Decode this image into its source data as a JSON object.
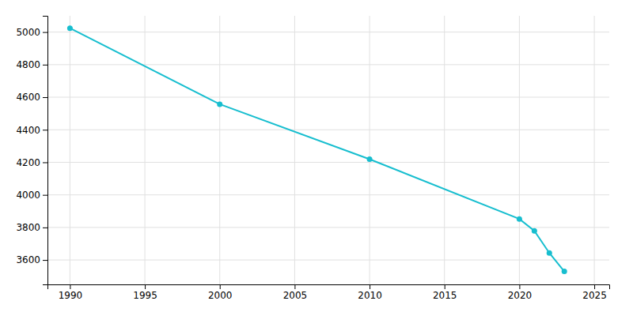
{
  "chart_data": {
    "type": "line",
    "x": [
      1990,
      2000,
      2010,
      2020,
      2021,
      2022,
      2023
    ],
    "values": [
      5024,
      4557,
      4219,
      3852,
      3779,
      3643,
      3530
    ],
    "color": "#17BECF",
    "marker": "circle",
    "xlim": [
      1988.5,
      2026
    ],
    "ylim": [
      3450,
      5100
    ],
    "xticks": [
      1990,
      1995,
      2000,
      2005,
      2010,
      2015,
      2020,
      2025
    ],
    "yticks": [
      3600,
      3800,
      4000,
      4200,
      4400,
      4600,
      4800,
      5000
    ],
    "grid": true
  }
}
